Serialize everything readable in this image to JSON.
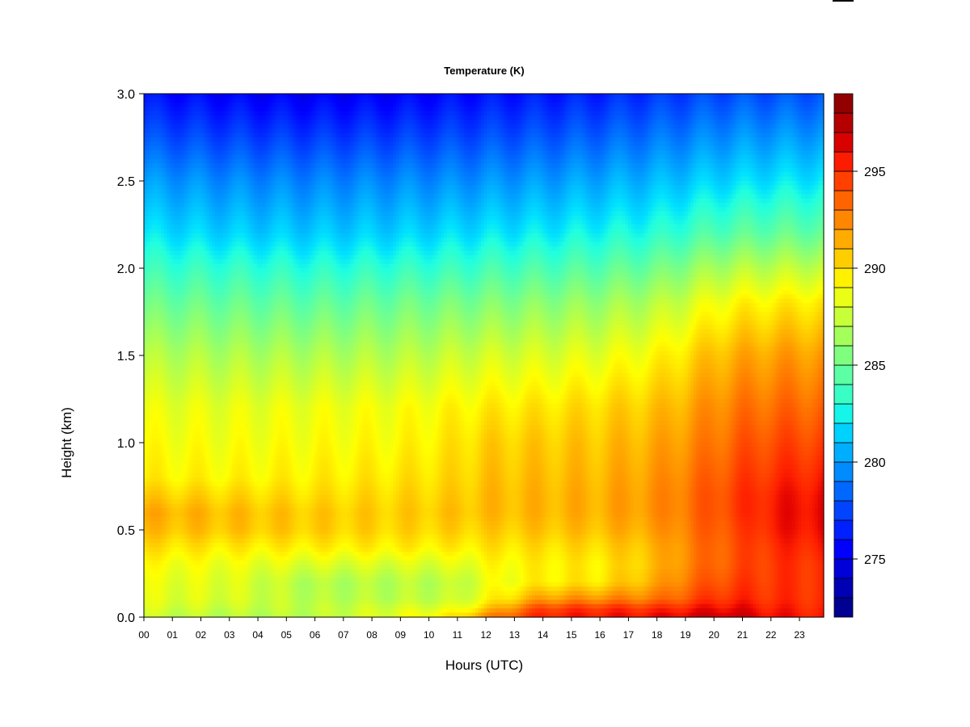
{
  "chart_data": {
    "type": "heatmap",
    "title": "Temperature (K)",
    "xlabel": "Hours (UTC)",
    "ylabel": "Height (km)",
    "x_ticks": [
      "00",
      "01",
      "02",
      "03",
      "04",
      "05",
      "06",
      "07",
      "08",
      "09",
      "10",
      "11",
      "12",
      "13",
      "14",
      "15",
      "16",
      "17",
      "18",
      "19",
      "20",
      "21",
      "22",
      "23"
    ],
    "xlim": [
      0,
      23.85
    ],
    "ylim": [
      0.0,
      3.0
    ],
    "y_ticks": [
      "0.0",
      "0.5",
      "1.0",
      "1.5",
      "2.0",
      "2.5",
      "3.0"
    ],
    "y_tick_values": [
      0.0,
      0.5,
      1.0,
      1.5,
      2.0,
      2.5,
      3.0
    ],
    "colorbar": {
      "range": [
        272,
        299
      ],
      "ticks": [
        275,
        280,
        285,
        290,
        295
      ],
      "tick_labels": [
        "275",
        "280",
        "285",
        "290",
        "295"
      ],
      "levels": 27,
      "colors": [
        "#000080",
        "#00009f",
        "#0000c0",
        "#0000e0",
        "#0000ff",
        "#0020ff",
        "#0040ff",
        "#0060ff",
        "#0080ff",
        "#00a0ff",
        "#00c0ff",
        "#00e0ff",
        "#20ffdf",
        "#40ffbf",
        "#60ff9f",
        "#80ff7f",
        "#a0ff5f",
        "#c0ff3f",
        "#e0ff1f",
        "#ffff00",
        "#ffe000",
        "#ffc000",
        "#ffa000",
        "#ff8000",
        "#ff6000",
        "#ff4000",
        "#ff2000",
        "#e00000",
        "#c00000",
        "#a00000",
        "#800000"
      ]
    },
    "profile_heights_km": [
      0.0,
      0.05,
      0.1,
      0.2,
      0.3,
      0.4,
      0.5,
      0.6,
      0.7,
      0.8,
      1.0,
      1.2,
      1.5,
      1.8,
      2.0,
      2.2,
      2.5,
      2.8,
      3.0
    ],
    "profiles": [
      {
        "hour": 0,
        "values": [
          287.5,
          288.0,
          288.3,
          288.5,
          289.0,
          290.0,
          291.0,
          291.5,
          290.5,
          289.5,
          289.0,
          288.5,
          287.0,
          285.0,
          283.5,
          282.0,
          280.0,
          277.5,
          276.0
        ]
      },
      {
        "hour": 3,
        "values": [
          287.0,
          287.5,
          288.0,
          288.2,
          288.6,
          289.6,
          290.8,
          291.0,
          290.2,
          289.3,
          288.8,
          288.4,
          286.8,
          284.8,
          283.3,
          281.5,
          279.5,
          277.0,
          275.5
        ]
      },
      {
        "hour": 6,
        "values": [
          287.0,
          287.3,
          287.0,
          286.8,
          288.0,
          289.5,
          290.5,
          290.6,
          290.0,
          289.5,
          289.0,
          288.6,
          286.8,
          284.6,
          283.0,
          281.3,
          279.3,
          276.8,
          275.3
        ]
      },
      {
        "hour": 9,
        "values": [
          288.5,
          288.0,
          287.2,
          287.0,
          288.0,
          289.5,
          290.3,
          290.5,
          290.2,
          289.8,
          289.2,
          288.8,
          287.0,
          285.0,
          283.3,
          281.5,
          279.5,
          277.0,
          275.5
        ]
      },
      {
        "hour": 11,
        "values": [
          290.0,
          288.5,
          287.5,
          287.2,
          288.2,
          289.5,
          290.4,
          290.8,
          290.5,
          290.2,
          289.8,
          289.3,
          287.5,
          285.3,
          283.5,
          281.8,
          279.6,
          277.2,
          275.8
        ]
      },
      {
        "hour": 12,
        "values": [
          292.5,
          290.5,
          289.0,
          288.5,
          289.0,
          289.8,
          290.5,
          291.0,
          291.0,
          290.8,
          290.4,
          289.6,
          287.8,
          285.5,
          283.8,
          282.0,
          279.8,
          277.4,
          276.0
        ]
      },
      {
        "hour": 14,
        "values": [
          295.5,
          294.5,
          292.0,
          289.5,
          289.5,
          290.0,
          290.8,
          291.2,
          291.2,
          291.0,
          290.6,
          289.8,
          288.0,
          285.8,
          284.0,
          282.2,
          280.0,
          277.6,
          276.2
        ]
      },
      {
        "hour": 16,
        "values": [
          295.8,
          295.0,
          292.5,
          289.8,
          289.6,
          290.2,
          291.0,
          291.4,
          291.4,
          291.2,
          290.8,
          290.2,
          288.4,
          286.2,
          284.4,
          282.6,
          280.4,
          278.0,
          276.5
        ]
      },
      {
        "hour": 18,
        "values": [
          296.0,
          295.0,
          293.0,
          291.5,
          291.0,
          291.2,
          291.8,
          292.2,
          292.2,
          292.0,
          291.5,
          290.8,
          289.2,
          287.0,
          285.0,
          283.0,
          280.8,
          278.5,
          277.0
        ]
      },
      {
        "hour": 19,
        "values": [
          296.5,
          295.5,
          294.0,
          293.0,
          292.5,
          292.5,
          292.8,
          293.0,
          293.0,
          292.8,
          292.2,
          291.5,
          290.0,
          287.8,
          285.8,
          283.6,
          281.2,
          278.8,
          277.3
        ]
      },
      {
        "hour": 20,
        "values": [
          297.0,
          296.0,
          295.0,
          294.0,
          293.5,
          293.5,
          293.8,
          294.0,
          294.0,
          293.7,
          293.0,
          292.4,
          291.0,
          288.8,
          286.6,
          284.2,
          281.6,
          279.2,
          277.6
        ]
      },
      {
        "hour": 21,
        "values": [
          296.8,
          296.0,
          295.2,
          294.6,
          294.2,
          294.2,
          294.4,
          294.8,
          294.8,
          294.5,
          293.8,
          293.0,
          291.5,
          289.3,
          287.0,
          284.5,
          281.8,
          279.4,
          277.8
        ]
      },
      {
        "hour": 22,
        "values": [
          296.0,
          295.5,
          295.0,
          294.8,
          294.8,
          295.0,
          295.5,
          295.6,
          295.5,
          295.0,
          294.2,
          293.3,
          291.8,
          289.5,
          287.2,
          284.7,
          282.0,
          279.5,
          277.8
        ]
      },
      {
        "hour": 23.85,
        "values": [
          295.5,
          295.2,
          295.0,
          295.0,
          295.0,
          295.5,
          296.0,
          296.2,
          296.0,
          295.5,
          294.5,
          293.5,
          292.0,
          289.8,
          287.4,
          284.8,
          282.1,
          279.6,
          278.0
        ]
      }
    ]
  }
}
